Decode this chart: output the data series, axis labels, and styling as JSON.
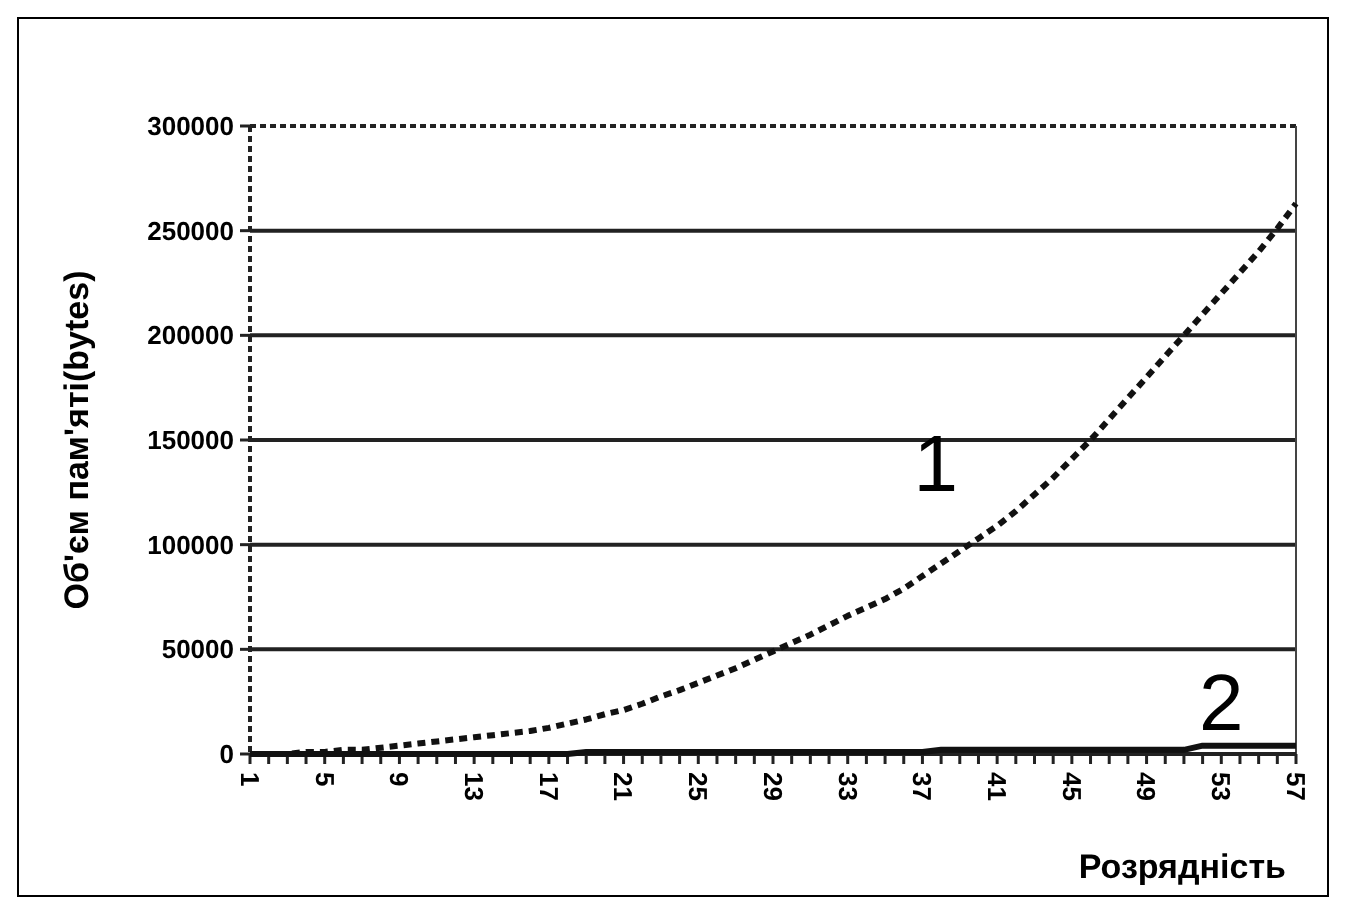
{
  "chart_data": {
    "type": "line",
    "xlabel": "Розрядність",
    "ylabel": "Об'єм пам'яті(bytes)",
    "categories": [
      "1",
      null,
      null,
      null,
      "5",
      null,
      null,
      null,
      "9",
      null,
      null,
      null,
      "13",
      null,
      null,
      null,
      "17",
      null,
      null,
      null,
      "21",
      null,
      null,
      null,
      "25",
      null,
      null,
      null,
      "29",
      null,
      null,
      null,
      "33",
      null,
      null,
      null,
      "37",
      null,
      null,
      null,
      "41",
      null,
      null,
      null,
      "45",
      null,
      null,
      null,
      "49",
      null,
      null,
      null,
      "53",
      null,
      null,
      null,
      "57"
    ],
    "series": [
      {
        "name": "1",
        "color": "#111111",
        "line_style": "dashed",
        "values": [
          0,
          0,
          0,
          1000,
          1000,
          2000,
          2000,
          3000,
          4000,
          5000,
          6000,
          7000,
          8000,
          9000,
          10000,
          11000,
          12500,
          14500,
          16500,
          19000,
          21000,
          24000,
          27500,
          30500,
          34000,
          37500,
          41000,
          45000,
          49000,
          53000,
          57000,
          61500,
          66000,
          70000,
          74000,
          79000,
          85000,
          91000,
          97000,
          103000,
          109000,
          116000,
          124000,
          132000,
          141000,
          150000,
          160000,
          170000,
          180000,
          190000,
          200000,
          210000,
          220000,
          230000,
          240000,
          251000,
          263000
        ]
      },
      {
        "name": "2",
        "color": "#111111",
        "line_style": "solid",
        "values": [
          0,
          0,
          0,
          0,
          0,
          0,
          0,
          0,
          0,
          0,
          0,
          0,
          0,
          0,
          0,
          0,
          0,
          0,
          1000,
          1000,
          1000,
          1000,
          1000,
          1000,
          1000,
          1000,
          1000,
          1000,
          1000,
          1000,
          1000,
          1000,
          1000,
          1000,
          1000,
          1000,
          1000,
          2000,
          2000,
          2000,
          2000,
          2000,
          2000,
          2000,
          2000,
          2000,
          2000,
          2000,
          2000,
          2000,
          2000,
          4000,
          4000,
          4000,
          4000,
          4000,
          4000
        ]
      }
    ],
    "ylim": [
      0,
      300000
    ],
    "yticks": [
      0,
      50000,
      100000,
      150000,
      200000,
      250000,
      300000
    ],
    "grid": "y",
    "marker": "none"
  }
}
